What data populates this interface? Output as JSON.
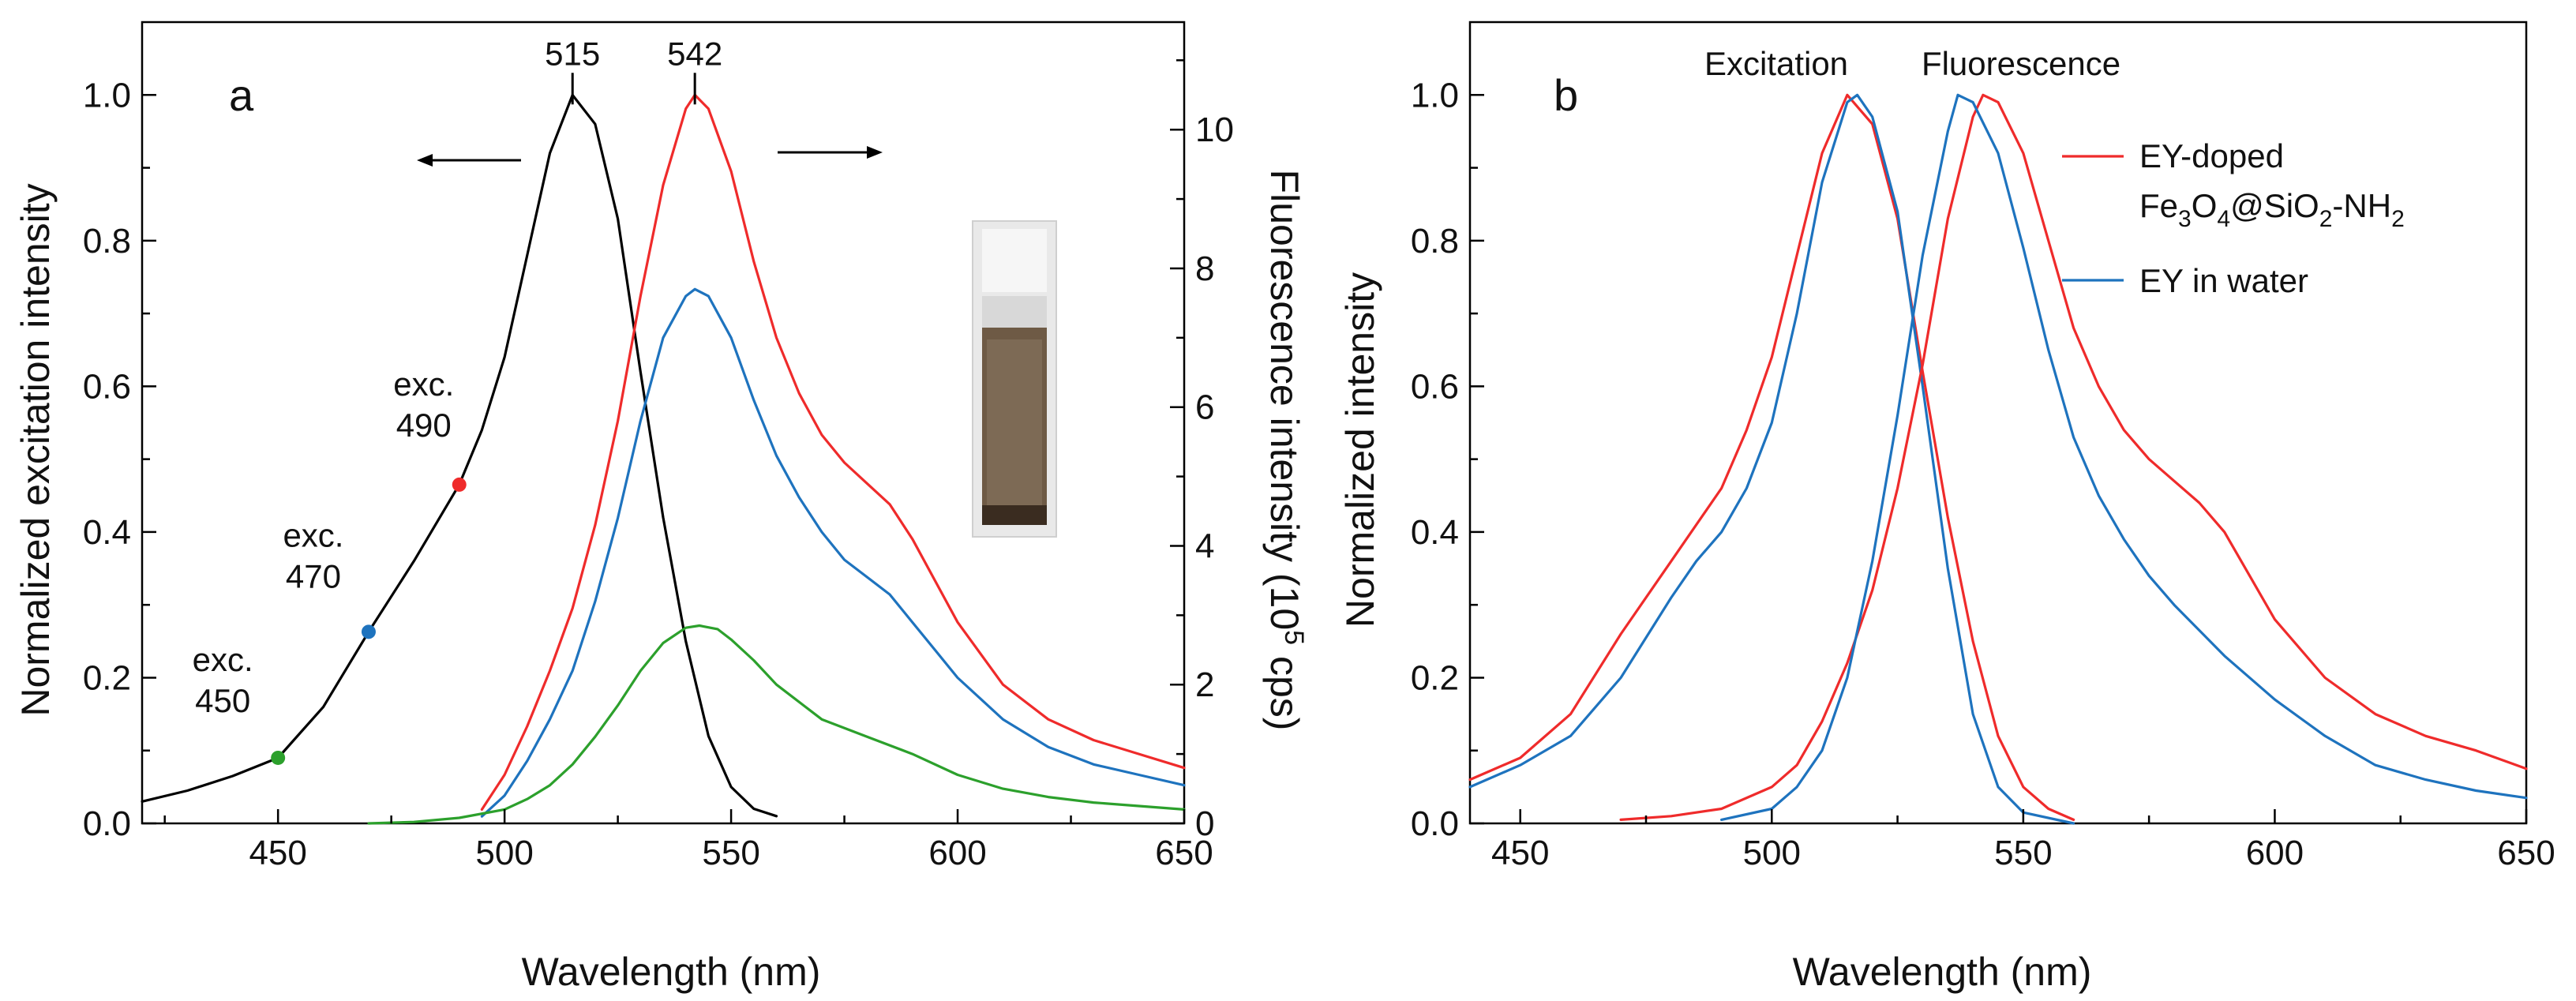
{
  "chart_data": [
    {
      "panel": "a",
      "type": "line",
      "xlabel": "Wavelength (nm)",
      "ylabel_left": "Normalized excitation intensity",
      "ylabel_right_prefix": "Fluorescence intensity (10",
      "ylabel_right_sup": "5",
      "ylabel_right_suffix": " cps)",
      "xlim": [
        420,
        650
      ],
      "ylim_left": [
        0,
        1.1
      ],
      "ylim_right": [
        0,
        11.55
      ],
      "xticks": [
        450,
        500,
        550,
        600,
        650
      ],
      "yticks_left": [
        0.0,
        0.2,
        0.4,
        0.6,
        0.8,
        1.0
      ],
      "yticks_right": [
        0,
        2,
        4,
        6,
        8,
        10
      ],
      "peak_labels": [
        "515",
        "542"
      ],
      "left_arrow_label": "",
      "excitation_points": [
        {
          "label_line1": "exc.",
          "label_line2": "490",
          "x": 490,
          "y": 0.465,
          "color": "#ef2b2b"
        },
        {
          "label_line1": "exc.",
          "label_line2": "470",
          "x": 470,
          "y": 0.263,
          "color": "#1e73be"
        },
        {
          "label_line1": "exc.",
          "label_line2": "450",
          "x": 450,
          "y": 0.09,
          "color": "#2ca02c"
        }
      ],
      "series": [
        {
          "name": "Excitation",
          "axis": "left",
          "color": "#000000",
          "x": [
            420,
            430,
            440,
            450,
            460,
            470,
            480,
            490,
            495,
            500,
            505,
            510,
            515,
            520,
            525,
            530,
            535,
            540,
            545,
            550,
            555,
            560
          ],
          "y": [
            0.03,
            0.045,
            0.065,
            0.09,
            0.16,
            0.263,
            0.36,
            0.465,
            0.54,
            0.64,
            0.78,
            0.92,
            1.0,
            0.96,
            0.83,
            0.62,
            0.42,
            0.25,
            0.12,
            0.05,
            0.02,
            0.01
          ]
        },
        {
          "name": "Fluorescence exc. 490",
          "axis": "right",
          "color": "#ef2b2b",
          "x": [
            495,
            500,
            505,
            510,
            515,
            520,
            525,
            530,
            535,
            540,
            542,
            545,
            550,
            555,
            560,
            565,
            570,
            575,
            580,
            585,
            590,
            595,
            600,
            610,
            620,
            630,
            640,
            650
          ],
          "y": [
            0.2,
            0.7,
            1.4,
            2.2,
            3.1,
            4.3,
            5.8,
            7.6,
            9.2,
            10.3,
            10.5,
            10.3,
            9.4,
            8.1,
            7.0,
            6.2,
            5.6,
            5.2,
            4.9,
            4.6,
            4.1,
            3.5,
            2.9,
            2.0,
            1.5,
            1.2,
            1.0,
            0.8
          ]
        },
        {
          "name": "Fluorescence exc. 470",
          "axis": "right",
          "color": "#1e73be",
          "x": [
            495,
            500,
            505,
            510,
            515,
            520,
            525,
            530,
            535,
            540,
            542,
            545,
            550,
            555,
            560,
            565,
            570,
            575,
            580,
            585,
            590,
            595,
            600,
            610,
            620,
            630,
            640,
            650
          ],
          "y": [
            0.1,
            0.4,
            0.9,
            1.5,
            2.2,
            3.2,
            4.4,
            5.8,
            7.0,
            7.6,
            7.7,
            7.6,
            7.0,
            6.1,
            5.3,
            4.7,
            4.2,
            3.8,
            3.55,
            3.3,
            2.9,
            2.5,
            2.1,
            1.5,
            1.1,
            0.85,
            0.7,
            0.55
          ]
        },
        {
          "name": "Fluorescence exc. 450",
          "axis": "right",
          "color": "#2ca02c",
          "x": [
            470,
            480,
            490,
            500,
            505,
            510,
            515,
            520,
            525,
            530,
            535,
            540,
            543,
            547,
            550,
            555,
            560,
            570,
            580,
            590,
            600,
            610,
            620,
            630,
            640,
            650
          ],
          "y": [
            0,
            0.02,
            0.08,
            0.2,
            0.35,
            0.55,
            0.85,
            1.25,
            1.7,
            2.2,
            2.6,
            2.82,
            2.85,
            2.8,
            2.65,
            2.35,
            2.0,
            1.5,
            1.25,
            1.0,
            0.7,
            0.5,
            0.38,
            0.3,
            0.25,
            0.2
          ]
        }
      ]
    },
    {
      "panel": "b",
      "type": "line",
      "xlabel": "Wavelength (nm)",
      "ylabel": "Normalized intensity",
      "xlim": [
        440,
        650
      ],
      "ylim": [
        0,
        1.1
      ],
      "xticks": [
        450,
        500,
        550,
        600,
        650
      ],
      "yticks": [
        0.0,
        0.2,
        0.4,
        0.6,
        0.8,
        1.0
      ],
      "top_labels": [
        "Excitation",
        "Fluorescence"
      ],
      "legend": [
        {
          "line1": "EY-doped",
          "line2_parts": [
            "Fe",
            "3",
            "O",
            "4",
            "@SiO",
            "2",
            "-NH",
            "2"
          ],
          "color": "#ef2b2b"
        },
        {
          "line1": "EY in water",
          "color": "#1e73be"
        }
      ],
      "series": [
        {
          "name": "EY-doped excitation",
          "color": "#ef2b2b",
          "x": [
            440,
            450,
            460,
            470,
            480,
            490,
            495,
            500,
            505,
            510,
            515,
            520,
            525,
            530,
            535,
            540,
            545,
            550,
            555,
            560
          ],
          "y": [
            0.06,
            0.09,
            0.15,
            0.26,
            0.36,
            0.46,
            0.54,
            0.64,
            0.78,
            0.92,
            1.0,
            0.96,
            0.83,
            0.62,
            0.42,
            0.25,
            0.12,
            0.05,
            0.02,
            0.005
          ]
        },
        {
          "name": "EY in water excitation",
          "color": "#1e73be",
          "x": [
            440,
            450,
            460,
            470,
            480,
            485,
            490,
            495,
            500,
            505,
            510,
            515,
            517,
            520,
            525,
            530,
            535,
            540,
            545,
            550,
            560
          ],
          "y": [
            0.05,
            0.08,
            0.12,
            0.2,
            0.31,
            0.36,
            0.4,
            0.46,
            0.55,
            0.7,
            0.88,
            0.99,
            1.0,
            0.97,
            0.84,
            0.6,
            0.35,
            0.15,
            0.05,
            0.015,
            0.0
          ]
        },
        {
          "name": "EY-doped fluorescence",
          "color": "#ef2b2b",
          "x": [
            470,
            480,
            490,
            500,
            505,
            510,
            515,
            520,
            525,
            530,
            535,
            540,
            542,
            545,
            550,
            555,
            560,
            565,
            570,
            575,
            580,
            585,
            590,
            595,
            600,
            610,
            620,
            630,
            640,
            650
          ],
          "y": [
            0.005,
            0.01,
            0.02,
            0.05,
            0.08,
            0.14,
            0.22,
            0.32,
            0.46,
            0.63,
            0.83,
            0.97,
            1.0,
            0.99,
            0.92,
            0.8,
            0.68,
            0.6,
            0.54,
            0.5,
            0.47,
            0.44,
            0.4,
            0.34,
            0.28,
            0.2,
            0.15,
            0.12,
            0.1,
            0.075
          ]
        },
        {
          "name": "EY in water fluorescence",
          "color": "#1e73be",
          "x": [
            490,
            500,
            505,
            510,
            515,
            520,
            525,
            530,
            535,
            537,
            540,
            545,
            550,
            555,
            560,
            565,
            570,
            575,
            580,
            590,
            600,
            610,
            620,
            630,
            640,
            650
          ],
          "y": [
            0.005,
            0.02,
            0.05,
            0.1,
            0.2,
            0.36,
            0.56,
            0.78,
            0.95,
            1.0,
            0.99,
            0.92,
            0.79,
            0.65,
            0.53,
            0.45,
            0.39,
            0.34,
            0.3,
            0.23,
            0.17,
            0.12,
            0.08,
            0.06,
            0.045,
            0.035
          ]
        }
      ]
    }
  ]
}
